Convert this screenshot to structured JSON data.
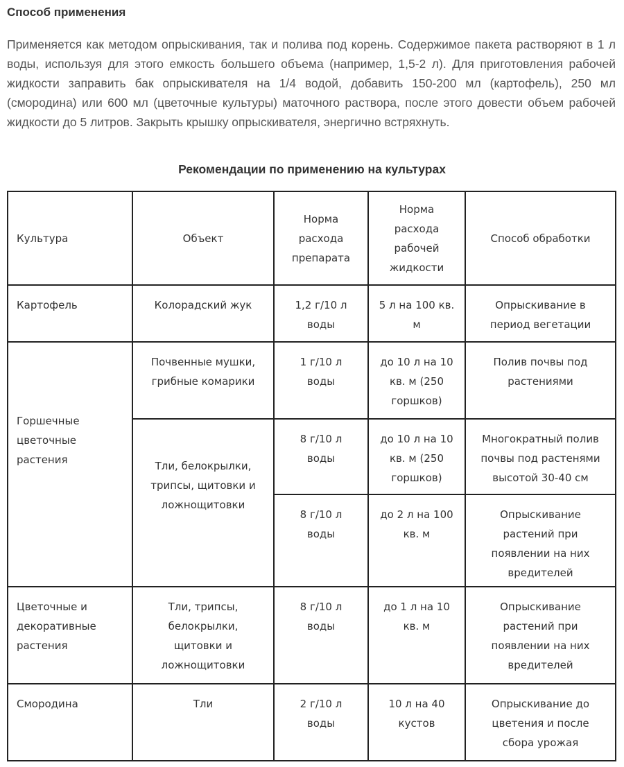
{
  "heading": "Способ применения",
  "paragraph": "Применяется как методом опрыскивания, так и полива под корень. Содержимое пакета растворяют в 1 л воды, используя для этого емкость большего объема (например, 1,5-2 л). Для приготовления рабочей жидкости заправить бак опрыскивателя на 1/4 водой, добавить 150-200 мл (картофель), 250 мл (смородина) или 600 мл (цветочные культуры) маточного раствора, после этого довести объем рабочей жидкости до 5 литров. Закрыть крышку опрыскивателя, энергично встряхнуть.",
  "table_title": "Рекомендации по применению на культурах",
  "table": {
    "headers": [
      "Культура",
      "Объект",
      "Норма\nрасхода\nпрепарата",
      "Норма\nрасхода\nрабочей\nжидкости",
      "Способ обработки"
    ],
    "rows": [
      {
        "culture": "Картофель",
        "object": "Колорадский жук",
        "dose": "1,2 г/10 л\nводы",
        "liquid": "5 л на 100 кв.\nм",
        "method": "Опрыскивание в\nпериод вегетации"
      },
      {
        "culture": "Горшечные\nцветочные\nрастения",
        "object": "Почвенные мушки,\nгрибные комарики",
        "dose": "1 г/10 л\nводы",
        "liquid": "до 10 л на 10\nкв. м (250\nгоршков)",
        "method": "Полив почвы под\nрастениями"
      },
      {
        "object": "Тли, белокрылки,\nтрипсы, щитовки и\nложнощитовки",
        "dose": "8 г/10 л\nводы",
        "liquid": "до 10 л на 10\nкв. м (250\nгоршков)",
        "method": "Многократный полив\nпочвы под растенями\nвысотой 30-40 см"
      },
      {
        "dose": "8 г/10 л\nводы",
        "liquid": "до 2 л на 100\nкв. м",
        "method": "Опрыскивание\nрастений при\nпоявлении на них\nвредителей"
      },
      {
        "culture": "Цветочные и\nдекоративные\nрастения",
        "object": "Тли, трипсы,\nбелокрылки,\nщитовки и\nложнощитовки",
        "dose": "8 г/10 л\nводы",
        "liquid": "до 1 л на 10\nкв. м",
        "method": "Опрыскивание\nрастений при\nпоявлении на них\nвредителей"
      },
      {
        "culture": "Смородина",
        "object": "Тли",
        "dose": "2 г/10 л\nводы",
        "liquid": "10 л на 40\nкустов",
        "method": "Опрыскивание до\nцветения и после\nсбора урожая"
      }
    ]
  }
}
